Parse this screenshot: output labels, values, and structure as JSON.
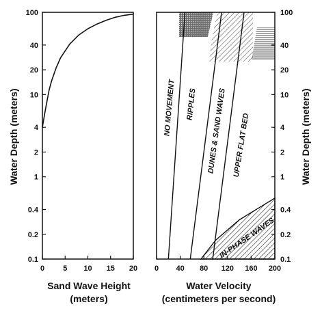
{
  "chart_data": [
    {
      "type": "line",
      "xlabel": "Sand Wave Height",
      "xlabel_units": "(meters)",
      "ylabel": "Water Depth (meters)",
      "x_ticks": [
        "0",
        "5",
        "10",
        "15",
        "20"
      ],
      "xlim": [
        0,
        20
      ],
      "y_scale": "log",
      "y_ticks": [
        "0.1",
        "0.2",
        "0.4",
        "1",
        "2",
        "4",
        "10",
        "20",
        "40",
        "100"
      ],
      "ylim": [
        0.1,
        100
      ],
      "grid": false,
      "series": [
        {
          "x": [
            0,
            0.5,
            1,
            1.5,
            2,
            3,
            4,
            5,
            6,
            8,
            10,
            12,
            14,
            16,
            18,
            20
          ],
          "y": [
            4,
            5.8,
            8.3,
            11.5,
            14.5,
            21,
            28,
            34,
            41,
            53,
            63,
            72,
            80,
            87,
            92,
            95
          ]
        }
      ]
    },
    {
      "type": "area",
      "xlabel": "Water Velocity",
      "xlabel_units": "(centimeters per second)",
      "ylabel": "Water Depth (meters)",
      "x_ticks": [
        "0",
        "40",
        "80",
        "120",
        "160",
        "200"
      ],
      "xlim": [
        0,
        200
      ],
      "y_scale": "log",
      "y_ticks": [
        "0.1",
        "0.2",
        "0.4",
        "1",
        "2",
        "4",
        "10",
        "20",
        "40",
        "100"
      ],
      "ylim": [
        0.1,
        100
      ],
      "grid": false,
      "boundaries": [
        {
          "points": [
            {
              "x": 20,
              "y": 0.1
            },
            {
              "x": 48,
              "y": 100
            }
          ]
        },
        {
          "points": [
            {
              "x": 57,
              "y": 0.1
            },
            {
              "x": 110,
              "y": 100
            }
          ]
        },
        {
          "points": [
            {
              "x": 95,
              "y": 0.1
            },
            {
              "x": 148,
              "y": 100
            }
          ]
        }
      ],
      "in_phase_boundary": [
        {
          "x": 75,
          "y": 0.1
        },
        {
          "x": 100,
          "y": 0.17
        },
        {
          "x": 140,
          "y": 0.3
        },
        {
          "x": 200,
          "y": 0.55
        }
      ],
      "regions": [
        {
          "label": "NO MOVEMENT"
        },
        {
          "label": "RIPPLES"
        },
        {
          "label": "DUNES & SAND WAVES"
        },
        {
          "label": "UPPER FLAT BED"
        },
        {
          "label": "IN-PHASE WAVES"
        }
      ]
    }
  ]
}
